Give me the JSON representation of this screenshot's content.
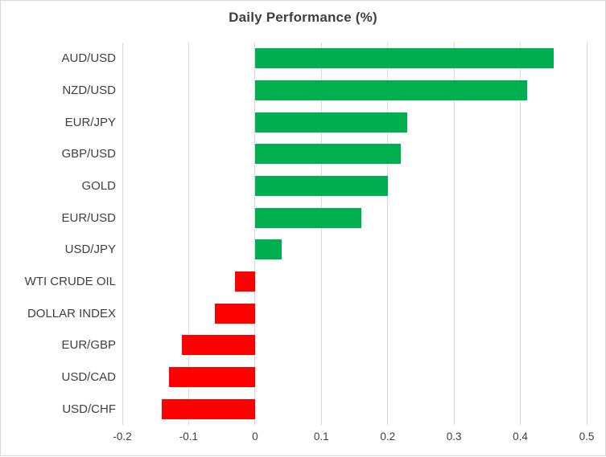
{
  "chart_data": {
    "type": "bar",
    "orientation": "horizontal",
    "title": "Daily Performance (%)",
    "xlabel": "",
    "ylabel": "",
    "categories": [
      "AUD/USD",
      "NZD/USD",
      "EUR/JPY",
      "GBP/USD",
      "GOLD",
      "EUR/USD",
      "USD/JPY",
      "WTI CRUDE OIL",
      "DOLLAR INDEX",
      "EUR/GBP",
      "USD/CAD",
      "USD/CHF"
    ],
    "values": [
      0.45,
      0.41,
      0.23,
      0.22,
      0.2,
      0.16,
      0.04,
      -0.03,
      -0.06,
      -0.11,
      -0.13,
      -0.14
    ],
    "xlim": [
      -0.2,
      0.5
    ],
    "x_ticks": [
      -0.2,
      -0.1,
      0,
      0.1,
      0.2,
      0.3,
      0.4,
      0.5
    ],
    "x_tick_labels": [
      "-0.2",
      "-0.1",
      "0",
      "0.1",
      "0.2",
      "0.3",
      "0.4",
      "0.5"
    ],
    "grid": true,
    "legend": false,
    "colors": {
      "positive": "#00B050",
      "negative": "#FF0000",
      "gridline": "#D9D9D9",
      "frame_border": "#D9D9D9",
      "text": "#404040",
      "title_text": "#3F3F3F",
      "background": "#FFFFFF"
    }
  }
}
